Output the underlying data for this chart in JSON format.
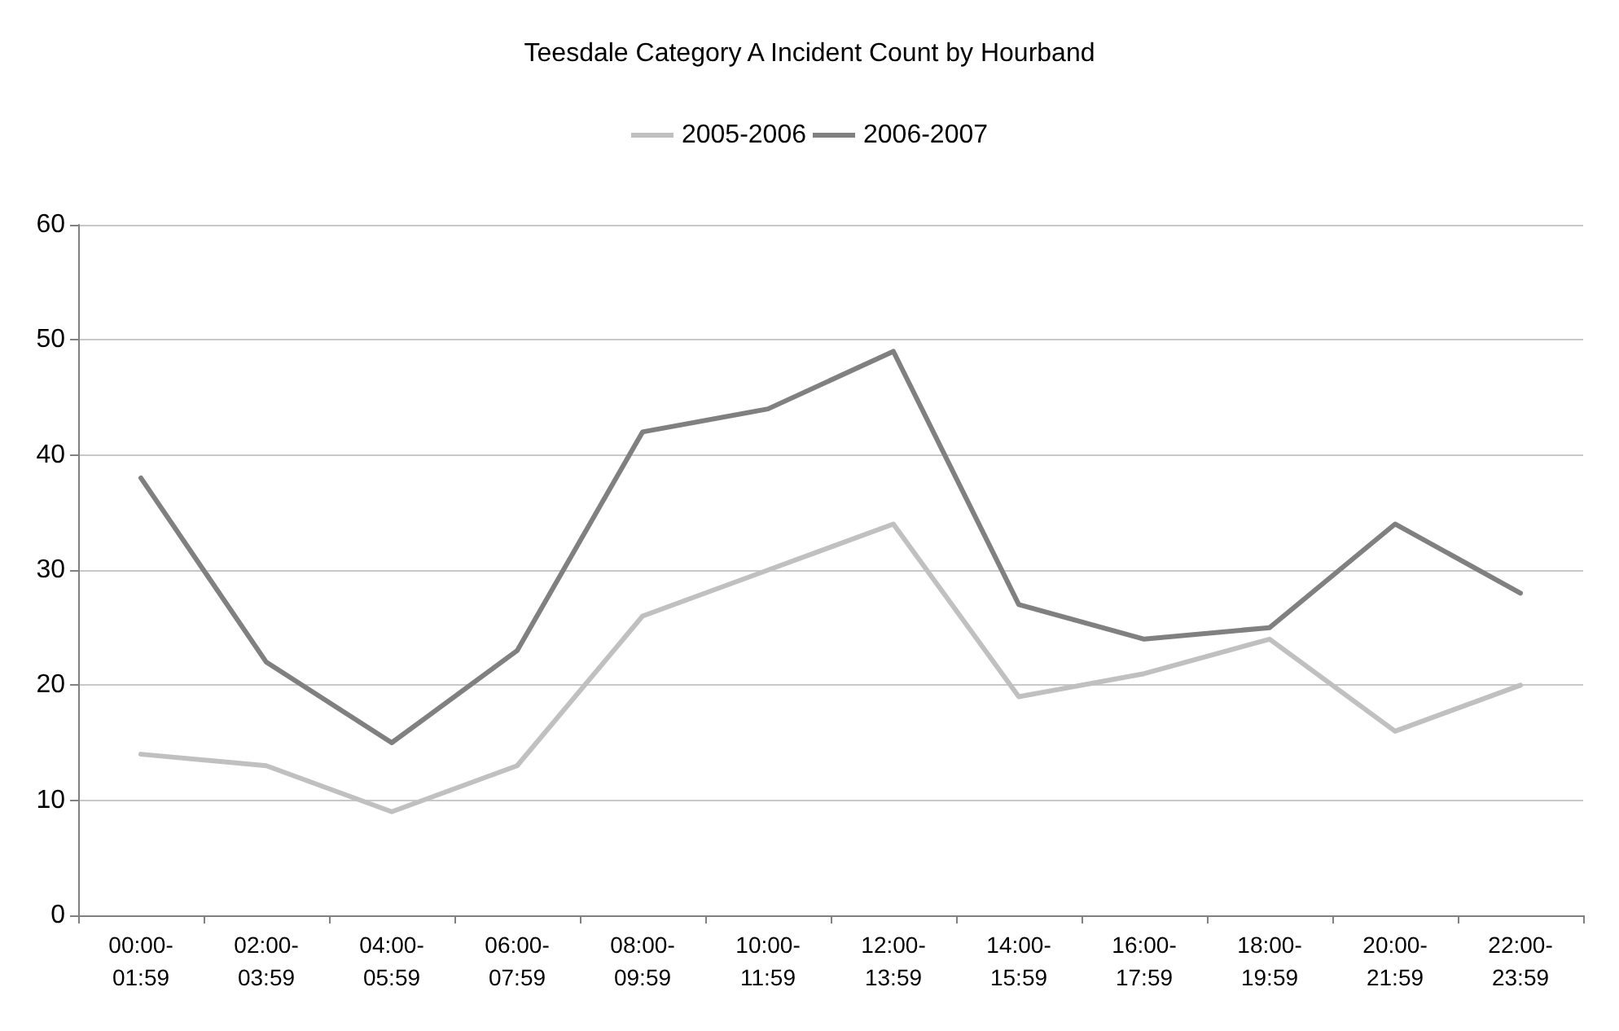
{
  "chart_data": {
    "type": "line",
    "title": "Teesdale Category A Incident Count by Hourband",
    "categories": [
      "00:00-01:59",
      "02:00-03:59",
      "04:00-05:59",
      "06:00-07:59",
      "08:00-09:59",
      "10:00-11:59",
      "12:00-13:59",
      "14:00-15:59",
      "16:00-17:59",
      "18:00-19:59",
      "20:00-21:59",
      "22:00-23:59"
    ],
    "series": [
      {
        "name": "2005-2006",
        "color": "#c0c0c0",
        "values": [
          14,
          13,
          9,
          13,
          26,
          30,
          34,
          19,
          21,
          24,
          16,
          20
        ]
      },
      {
        "name": "2006-2007",
        "color": "#808080",
        "values": [
          38,
          22,
          15,
          23,
          42,
          44,
          49,
          27,
          24,
          25,
          34,
          28
        ]
      }
    ],
    "ylim": [
      0,
      60
    ],
    "yticks": [
      0,
      10,
      20,
      30,
      40,
      50,
      60
    ],
    "grid": "y",
    "legend": "top",
    "marker": "none",
    "line_style": "solid"
  }
}
